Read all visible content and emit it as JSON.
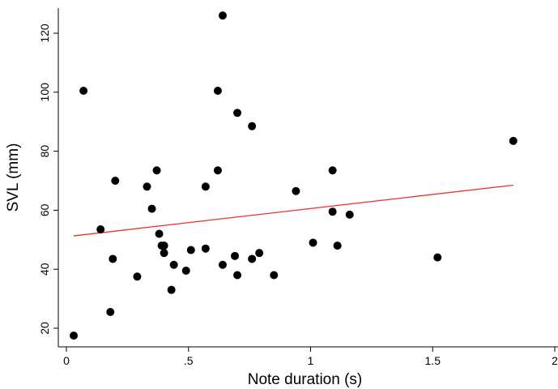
{
  "chart_data": {
    "type": "scatter",
    "title": "",
    "xlabel": "Note duration (s)",
    "ylabel": "SVL (mm)",
    "xlim": [
      0,
      2
    ],
    "ylim": [
      15,
      128
    ],
    "x_ticks": [
      0,
      0.5,
      1,
      1.5,
      2
    ],
    "x_tick_labels": [
      "0",
      ".5",
      "1",
      "1.5",
      "2"
    ],
    "y_ticks": [
      20,
      40,
      60,
      80,
      100,
      120
    ],
    "y_tick_labels": [
      "20",
      "40",
      "60",
      "80",
      "100",
      "120"
    ],
    "grid": false,
    "colors": {
      "points": "#000000",
      "fit_line": "#e8312a",
      "axes": "#000000"
    },
    "points": [
      {
        "x": 0.03,
        "y": 17.5
      },
      {
        "x": 0.07,
        "y": 100.5
      },
      {
        "x": 0.14,
        "y": 53.5
      },
      {
        "x": 0.18,
        "y": 25.5
      },
      {
        "x": 0.19,
        "y": 43.5
      },
      {
        "x": 0.2,
        "y": 70
      },
      {
        "x": 0.29,
        "y": 37.5
      },
      {
        "x": 0.33,
        "y": 68
      },
      {
        "x": 0.35,
        "y": 60.5
      },
      {
        "x": 0.37,
        "y": 73.5
      },
      {
        "x": 0.38,
        "y": 52
      },
      {
        "x": 0.39,
        "y": 48
      },
      {
        "x": 0.4,
        "y": 48
      },
      {
        "x": 0.4,
        "y": 45.5
      },
      {
        "x": 0.43,
        "y": 33
      },
      {
        "x": 0.44,
        "y": 41.5
      },
      {
        "x": 0.49,
        "y": 39.5
      },
      {
        "x": 0.51,
        "y": 46.5
      },
      {
        "x": 0.57,
        "y": 68
      },
      {
        "x": 0.57,
        "y": 47
      },
      {
        "x": 0.62,
        "y": 100.5
      },
      {
        "x": 0.62,
        "y": 73.5
      },
      {
        "x": 0.64,
        "y": 126
      },
      {
        "x": 0.64,
        "y": 41.5
      },
      {
        "x": 0.69,
        "y": 44.5
      },
      {
        "x": 0.7,
        "y": 93
      },
      {
        "x": 0.7,
        "y": 38
      },
      {
        "x": 0.76,
        "y": 88.5
      },
      {
        "x": 0.76,
        "y": 43.5
      },
      {
        "x": 0.79,
        "y": 45.5
      },
      {
        "x": 0.85,
        "y": 38
      },
      {
        "x": 0.94,
        "y": 66.5
      },
      {
        "x": 1.01,
        "y": 49
      },
      {
        "x": 1.09,
        "y": 73.5
      },
      {
        "x": 1.09,
        "y": 59.5
      },
      {
        "x": 1.11,
        "y": 48
      },
      {
        "x": 1.16,
        "y": 58.5
      },
      {
        "x": 1.52,
        "y": 44
      },
      {
        "x": 1.83,
        "y": 83.5
      }
    ],
    "fit_line": {
      "x": [
        0.03,
        1.83
      ],
      "y": [
        51.3,
        68.5
      ]
    }
  }
}
